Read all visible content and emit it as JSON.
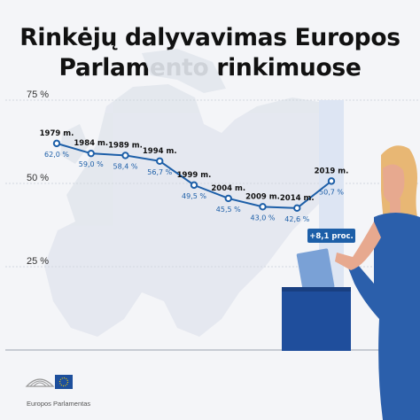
{
  "title_line1": "Rinkėjų dalyvavimas Europos",
  "title_line2": "Parlamento rinkimuose",
  "logo_text": "Europos Parlamentas",
  "colors": {
    "line": "#1d5fa8",
    "label": "#1d5fa8",
    "ballot_box": "#1f4e9c",
    "badge": "#1d5fa8",
    "highlight": "#dde5f3"
  },
  "chart_data": {
    "type": "line",
    "title": "Rinkėjų dalyvavimas Europos Parlamento rinkimuose",
    "ylim": [
      0,
      75
    ],
    "yticks": [
      0,
      25,
      50,
      75
    ],
    "ytick_labels": [
      "",
      "25 %",
      "50 %",
      "75 %"
    ],
    "grid": true,
    "years": [
      "1979 m.",
      "1984 m.",
      "1989 m.",
      "1994 m.",
      "1999 m.",
      "2004 m.",
      "2009 m.",
      "2014 m.",
      "2019 m."
    ],
    "values": [
      62.0,
      59.0,
      58.4,
      56.7,
      49.5,
      45.5,
      43.0,
      42.6,
      50.7
    ],
    "value_labels": [
      "62,0 %",
      "59,0 %",
      "58,4 %",
      "56,7 %",
      "49,5 %",
      "45,5 %",
      "43,0 %",
      "42,6 %",
      "50,7 %"
    ],
    "annotation": "+8,1 proc."
  }
}
